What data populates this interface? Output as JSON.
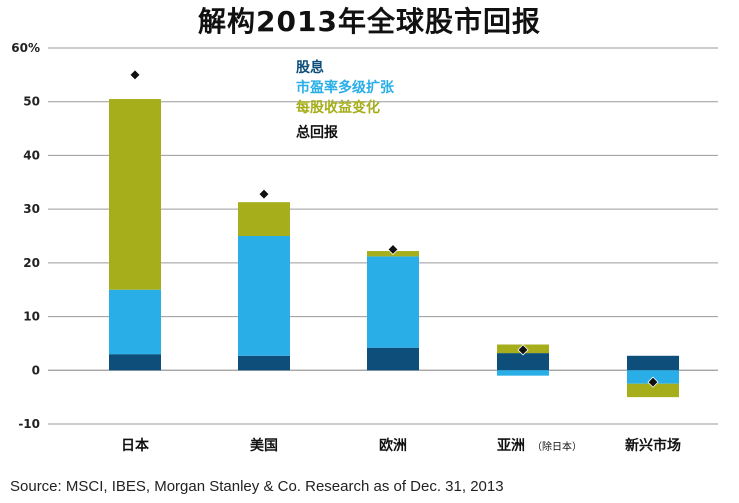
{
  "title": "解构2013年全球股市回报",
  "source": "Source: MSCI, IBES, Morgan Stanley & Co. Research as of Dec. 31, 2013",
  "colors": {
    "dividend": "#0d4f7a",
    "pe_expansion": "#29aee8",
    "eps_change": "#a7ae1c",
    "total": "#111111",
    "grid": "#9a9a9a"
  },
  "chart_data": {
    "type": "bar",
    "stacked": true,
    "title": "解构2013年全球股市回报",
    "ylim": [
      -10,
      60
    ],
    "yticks": [
      -10,
      0,
      10,
      20,
      30,
      40,
      50,
      60
    ],
    "ytick_labels": [
      "-10",
      "0",
      "10",
      "20",
      "30",
      "40",
      "50",
      "60%"
    ],
    "categories": [
      "日本",
      "美国",
      "欧洲",
      "亚洲",
      "新兴市场"
    ],
    "category_notes": [
      "",
      "",
      "",
      "（除日本）",
      ""
    ],
    "legend_position": "top-center",
    "series": [
      {
        "name": "股息",
        "key": "dividend",
        "values": [
          3,
          2.7,
          4.2,
          3.2,
          2.7
        ]
      },
      {
        "name": "市盈率多级扩张",
        "key": "pe_expansion",
        "values": [
          12,
          22.3,
          17,
          -1,
          -2.5
        ]
      },
      {
        "name": "每股收益变化",
        "key": "eps_change",
        "values": [
          35.5,
          6.3,
          1,
          1.6,
          -2.5
        ]
      }
    ],
    "total": {
      "name": "总回报",
      "key": "total",
      "values": [
        55,
        32.8,
        22.5,
        3.8,
        -2.2
      ]
    }
  }
}
